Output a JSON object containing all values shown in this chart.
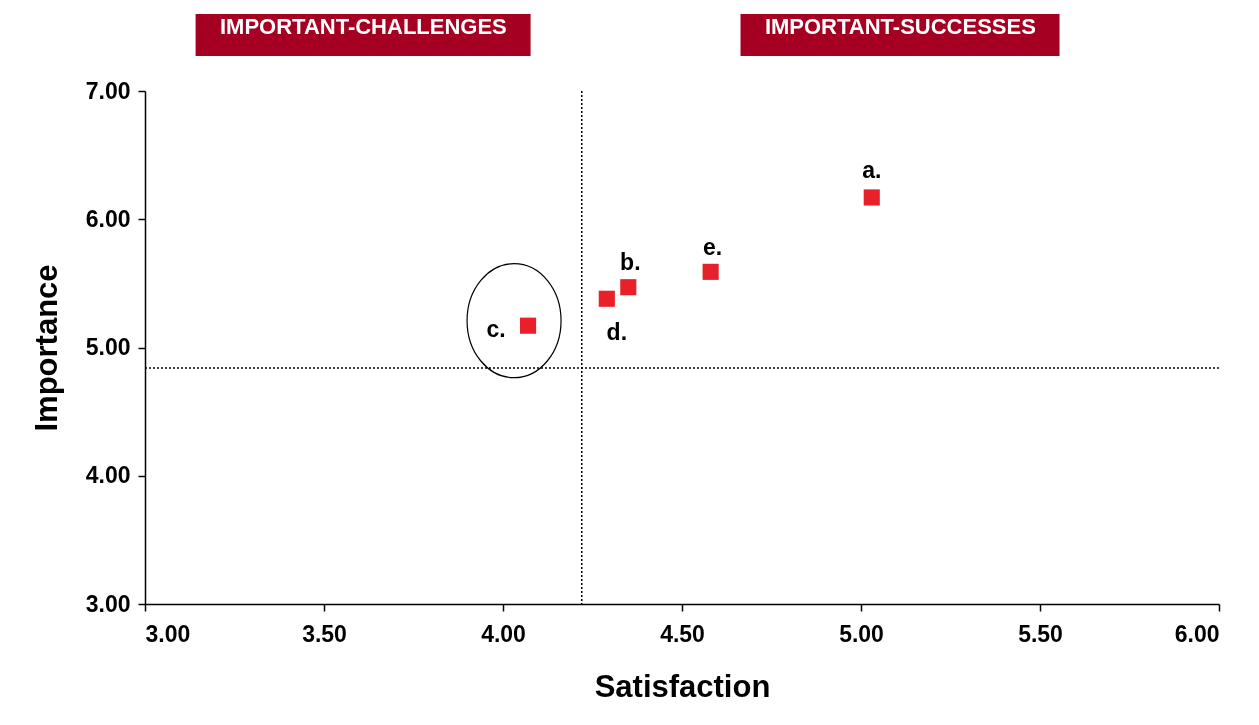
{
  "chart_data": {
    "type": "scatter",
    "xlabel": "Satisfaction",
    "ylabel": "Importance",
    "x": [
      5.03,
      4.35,
      4.07,
      4.29,
      4.58
    ],
    "values": [
      6.17,
      5.47,
      5.17,
      5.38,
      5.59
    ],
    "color": "#e8202a",
    "marker": "square",
    "xlim": [
      3,
      6
    ],
    "xticks": [
      {
        "value": 3,
        "label": "3.00"
      },
      {
        "value": 3.5,
        "label": "3.50"
      },
      {
        "value": 4,
        "label": "4.00"
      },
      {
        "value": 4.5,
        "label": "4.50"
      },
      {
        "value": 5,
        "label": "5.00"
      },
      {
        "value": 5.5,
        "label": "5.50"
      },
      {
        "value": 6,
        "label": "6.00"
      }
    ],
    "ylim": [
      3,
      7
    ],
    "yticks": [
      {
        "value": 3,
        "label": "3.00"
      },
      {
        "value": 4,
        "label": "4.00"
      },
      {
        "value": 5,
        "label": "5.00"
      },
      {
        "value": 6,
        "label": "6.00"
      },
      {
        "value": 7,
        "label": "7.00"
      }
    ],
    "ref_lines": [
      {
        "axis": "x",
        "value": 4.22,
        "line_style": "dotted"
      },
      {
        "axis": "y",
        "value": 4.84,
        "line_style": "dotted"
      }
    ],
    "annotations": [
      {
        "text": "a.",
        "x": 5.03,
        "y": 6.17
      },
      {
        "text": "b.",
        "x": 4.35,
        "y": 5.47
      },
      {
        "text": "c.",
        "x": 4.07,
        "y": 5.17
      },
      {
        "text": "d.",
        "x": 4.29,
        "y": 5.38
      },
      {
        "text": "e.",
        "x": 4.58,
        "y": 5.59
      },
      "IMPORTANT-CHALLENGES",
      "IMPORTANT-SUCCESSES"
    ],
    "grid": false
  }
}
